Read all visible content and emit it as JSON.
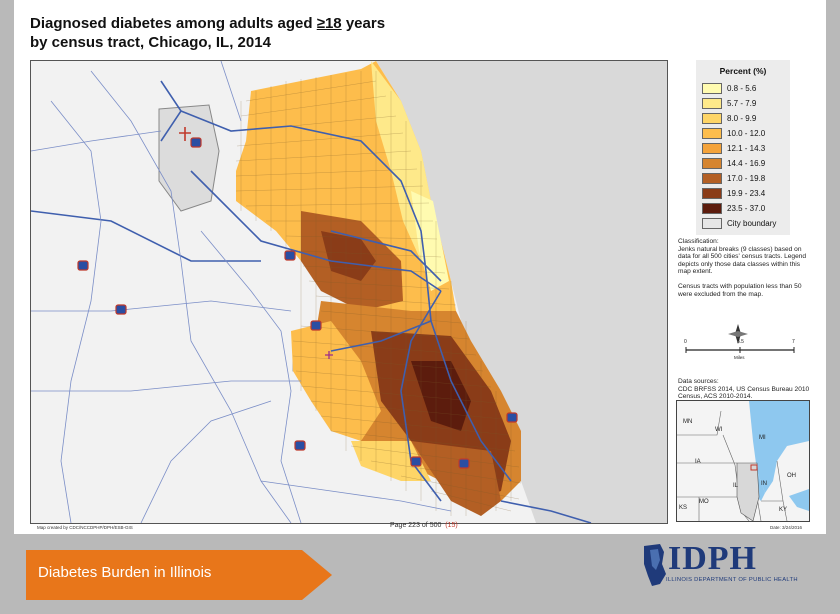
{
  "title": {
    "line1_prefix": "Diagnosed diabetes among adults aged ",
    "line1_ge": "≥18",
    "line1_suffix": " years",
    "line2": "by census tract, Chicago, IL, 2014"
  },
  "legend": {
    "title": "Percent (%)",
    "classes": [
      {
        "label": "0.8 - 5.6",
        "color": "#fffbb0"
      },
      {
        "label": "5.7 - 7.9",
        "color": "#fee98a"
      },
      {
        "label": "8.0 - 9.9",
        "color": "#fed567"
      },
      {
        "label": "10.0 - 12.0",
        "color": "#fdbd4c"
      },
      {
        "label": "12.1 - 14.3",
        "color": "#f4a33b"
      },
      {
        "label": "14.4 - 16.9",
        "color": "#d6852f"
      },
      {
        "label": "17.0 - 19.8",
        "color": "#b35f24"
      },
      {
        "label": "19.9 - 23.4",
        "color": "#8a3c18"
      },
      {
        "label": "23.5 - 37.0",
        "color": "#5c1c0d"
      }
    ],
    "boundary_label": "City boundary",
    "boundary_color": "#e6e6e6"
  },
  "notes": {
    "classification": "Classification:\nJenks natural breaks (9 classes) based on data for all 500 cities' census tracts. Legend depicts only those data classes within this map extent.",
    "excluded": "Census tracts with population less than 50 were excluded from the map."
  },
  "scale": {
    "labels": [
      "0",
      "3.5",
      "7"
    ],
    "unit": "Miles"
  },
  "sources": "Data sources:\nCDC BRFSS 2014, US Census Bureau 2010 Census, ACS 2010-2014.",
  "inset_labels": [
    "MN",
    "WI",
    "MI",
    "IA",
    "IL",
    "IN",
    "OH",
    "MO",
    "KY",
    "KS"
  ],
  "footer": {
    "credit": "Map created by CDC/NCCDPHP/DPH/ESB-GIS",
    "page": "Page 223 of 500",
    "page_extra": "(15)",
    "date": "Date: 3/24/2016"
  },
  "banner": {
    "text": "Diabetes Burden in Illinois",
    "color": "#e8761a"
  },
  "logo": {
    "name": "IDPH",
    "subtitle": "ILLINOIS DEPARTMENT OF PUBLIC HEALTH",
    "color": "#1f3a7a"
  }
}
